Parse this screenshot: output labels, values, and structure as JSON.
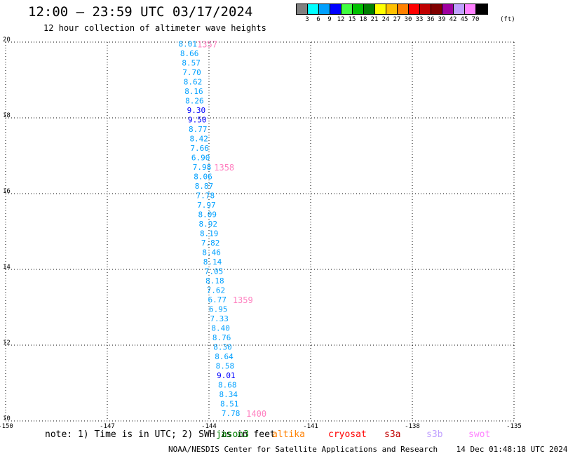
{
  "header": {
    "title": "12:00 – 23:59 UTC 03/17/2024",
    "subtitle": "12 hour collection of altimeter wave heights"
  },
  "legend": {
    "colors": [
      "#808080",
      "#00ffff",
      "#00a0ff",
      "#0000ff",
      "#40ff40",
      "#00c000",
      "#008000",
      "#ffff00",
      "#ffc000",
      "#ff8000",
      "#ff0000",
      "#c00000",
      "#800000",
      "#a000a0",
      "#c0a0ff",
      "#ff80ff",
      "#000000"
    ],
    "labels": [
      "3",
      "6",
      "9",
      "12",
      "15",
      "18",
      "21",
      "24",
      "27",
      "30",
      "33",
      "36",
      "39",
      "42",
      "45",
      "70"
    ],
    "unit": "(ft)"
  },
  "chart_data": {
    "type": "scatter",
    "title": "12:00 – 23:59 UTC 03/17/2024",
    "subtitle": "12 hour collection of altimeter wave heights",
    "xlim": [
      -150,
      -135
    ],
    "ylim": [
      10,
      20
    ],
    "x_ticks": [
      "-150",
      "-147",
      "-144",
      "-141",
      "-138",
      "-135"
    ],
    "y_ticks": [
      "10",
      "12",
      "14",
      "16",
      "18",
      "20"
    ],
    "grid": true,
    "points": [
      {
        "x": -144.9,
        "y": 19.95,
        "label": "8.01",
        "color": "#00a0ff"
      },
      {
        "x": -144.85,
        "y": 19.7,
        "label": "8.66",
        "color": "#00a0ff"
      },
      {
        "x": -144.8,
        "y": 19.45,
        "label": "8.57",
        "color": "#00a0ff"
      },
      {
        "x": -144.78,
        "y": 19.2,
        "label": "7.70",
        "color": "#00a0ff"
      },
      {
        "x": -144.75,
        "y": 18.95,
        "label": "8.62",
        "color": "#00a0ff"
      },
      {
        "x": -144.72,
        "y": 18.7,
        "label": "8.16",
        "color": "#00a0ff"
      },
      {
        "x": -144.7,
        "y": 18.45,
        "label": "8.26",
        "color": "#00a0ff"
      },
      {
        "x": -144.65,
        "y": 18.2,
        "label": "9.30",
        "color": "#0000ff"
      },
      {
        "x": -144.62,
        "y": 17.95,
        "label": "9.50",
        "color": "#0000ff"
      },
      {
        "x": -144.6,
        "y": 17.7,
        "label": "8.77",
        "color": "#00a0ff"
      },
      {
        "x": -144.57,
        "y": 17.45,
        "label": "8.42",
        "color": "#00a0ff"
      },
      {
        "x": -144.55,
        "y": 17.2,
        "label": "7.66",
        "color": "#00a0ff"
      },
      {
        "x": -144.52,
        "y": 16.95,
        "label": "6.90",
        "color": "#00a0ff"
      },
      {
        "x": -144.48,
        "y": 16.7,
        "label": "7.98",
        "color": "#00a0ff"
      },
      {
        "x": -144.45,
        "y": 16.45,
        "label": "8.06",
        "color": "#00a0ff"
      },
      {
        "x": -144.42,
        "y": 16.2,
        "label": "8.87",
        "color": "#00a0ff"
      },
      {
        "x": -144.38,
        "y": 15.95,
        "label": "7.78",
        "color": "#00a0ff"
      },
      {
        "x": -144.35,
        "y": 15.7,
        "label": "7.97",
        "color": "#00a0ff"
      },
      {
        "x": -144.32,
        "y": 15.45,
        "label": "8.09",
        "color": "#00a0ff"
      },
      {
        "x": -144.3,
        "y": 15.2,
        "label": "8.92",
        "color": "#00a0ff"
      },
      {
        "x": -144.27,
        "y": 14.95,
        "label": "8.19",
        "color": "#00a0ff"
      },
      {
        "x": -144.23,
        "y": 14.7,
        "label": "7.82",
        "color": "#00a0ff"
      },
      {
        "x": -144.2,
        "y": 14.45,
        "label": "8.46",
        "color": "#00a0ff"
      },
      {
        "x": -144.17,
        "y": 14.2,
        "label": "8.14",
        "color": "#00a0ff"
      },
      {
        "x": -144.13,
        "y": 13.95,
        "label": "7.05",
        "color": "#00a0ff"
      },
      {
        "x": -144.1,
        "y": 13.7,
        "label": "8.18",
        "color": "#00a0ff"
      },
      {
        "x": -144.07,
        "y": 13.45,
        "label": "7.62",
        "color": "#00a0ff"
      },
      {
        "x": -144.03,
        "y": 13.2,
        "label": "6.77",
        "color": "#00a0ff"
      },
      {
        "x": -144.0,
        "y": 12.95,
        "label": "6.95",
        "color": "#00a0ff"
      },
      {
        "x": -143.97,
        "y": 12.7,
        "label": "7.33",
        "color": "#00a0ff"
      },
      {
        "x": -143.93,
        "y": 12.45,
        "label": "8.40",
        "color": "#00a0ff"
      },
      {
        "x": -143.9,
        "y": 12.2,
        "label": "8.76",
        "color": "#00a0ff"
      },
      {
        "x": -143.87,
        "y": 11.95,
        "label": "8.30",
        "color": "#00a0ff"
      },
      {
        "x": -143.83,
        "y": 11.7,
        "label": "8.64",
        "color": "#00a0ff"
      },
      {
        "x": -143.8,
        "y": 11.45,
        "label": "8.58",
        "color": "#00a0ff"
      },
      {
        "x": -143.77,
        "y": 11.2,
        "label": "9.01",
        "color": "#0000ff"
      },
      {
        "x": -143.73,
        "y": 10.95,
        "label": "8.68",
        "color": "#00a0ff"
      },
      {
        "x": -143.7,
        "y": 10.7,
        "label": "8.34",
        "color": "#00a0ff"
      },
      {
        "x": -143.67,
        "y": 10.45,
        "label": "8.51",
        "color": "#00a0ff"
      },
      {
        "x": -143.63,
        "y": 10.2,
        "label": "7.78",
        "color": "#00a0ff"
      }
    ],
    "time_labels": [
      {
        "x": -144.35,
        "y": 19.95,
        "label": "1357"
      },
      {
        "x": -143.85,
        "y": 16.7,
        "label": "1358"
      },
      {
        "x": -143.3,
        "y": 13.2,
        "label": "1359"
      },
      {
        "x": -142.9,
        "y": 10.2,
        "label": "1400"
      }
    ],
    "time_label_color": "#ff80c0"
  },
  "footer": {
    "note": "note: 1) Time is in UTC; 2) SWH is in feet",
    "satellites": [
      {
        "name": "jason3",
        "color": "#008000"
      },
      {
        "name": "altika",
        "color": "#ff8000"
      },
      {
        "name": "cryosat",
        "color": "#ff0000"
      },
      {
        "name": "s3a",
        "color": "#c00000"
      },
      {
        "name": "s3b",
        "color": "#c0a0ff"
      },
      {
        "name": "swot",
        "color": "#ff80ff"
      }
    ],
    "credit": "NOAA/NESDIS Center for Satellite Applications and Research",
    "timestamp": "14 Dec 01:48:18 UTC 2024"
  }
}
